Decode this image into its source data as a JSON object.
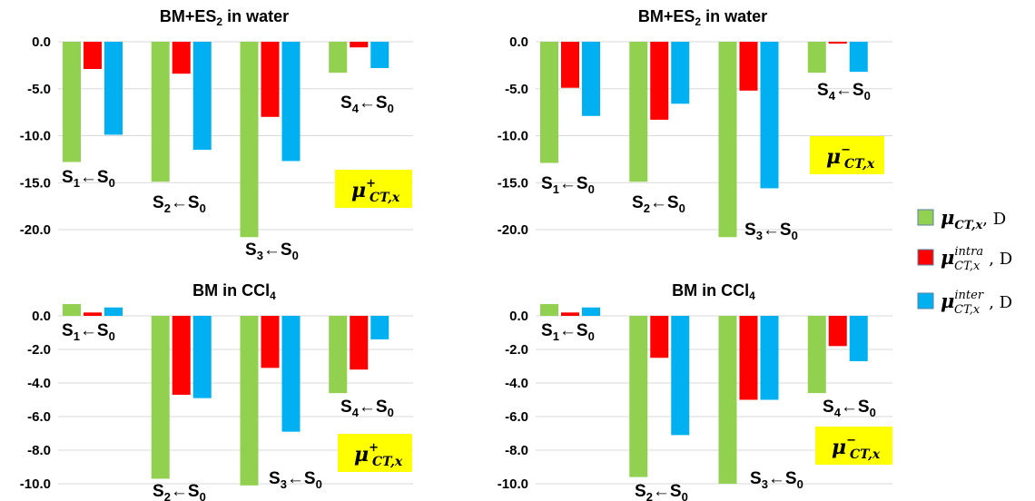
{
  "colors": {
    "mu": "#92d050",
    "intra": "#ff0000",
    "inter": "#00b0f0",
    "highlight": "#ffff00",
    "grid": "#d9d9d9"
  },
  "legend": [
    {
      "sym": "μ",
      "sub": "CT,x",
      "sup": "",
      "unit": ", D",
      "color_key": "mu"
    },
    {
      "sym": "μ",
      "sub": "CT,x",
      "sup": "intra",
      "unit": ", D",
      "color_key": "intra"
    },
    {
      "sym": "μ",
      "sub": "CT,x",
      "sup": "inter",
      "unit": ", D",
      "color_key": "inter"
    }
  ],
  "chart_data": [
    {
      "type": "bar",
      "title": {
        "base": "BM+ES",
        "sub": "2",
        "rest": " in water"
      },
      "ylim": [
        -20,
        0
      ],
      "yticks": [
        "0.0",
        "-5.0",
        "-10.0",
        "-15.0",
        "-20.0"
      ],
      "grid": true,
      "label": {
        "sym": "μ",
        "sup": "+",
        "sub": "CT,x"
      },
      "series": [
        {
          "color_key": "mu",
          "values": [
            -12.8,
            -14.9,
            -20.8,
            -3.3
          ]
        },
        {
          "color_key": "intra",
          "values": [
            -2.9,
            -3.4,
            -8.0,
            -0.6
          ]
        },
        {
          "color_key": "inter",
          "values": [
            -9.9,
            -11.5,
            -12.7,
            -2.8
          ]
        }
      ],
      "transitions": [
        {
          "a": "S",
          "an": "1",
          "arrow": "←",
          "b": "S",
          "bn": "0"
        },
        {
          "a": "S",
          "an": "2",
          "arrow": "←",
          "b": "S",
          "bn": "0"
        },
        {
          "a": "S",
          "an": "3",
          "arrow": "←",
          "b": "S",
          "bn": "0"
        },
        {
          "a": "S",
          "an": "4",
          "arrow": "←",
          "b": "S",
          "bn": "0"
        }
      ]
    },
    {
      "type": "bar",
      "title": {
        "base": "BM+ES",
        "sub": "2",
        "rest": " in water"
      },
      "ylim": [
        -20,
        0
      ],
      "yticks": [
        "0.0",
        "-5.0",
        "-10.0",
        "-15.0",
        "-20.0"
      ],
      "grid": true,
      "label": {
        "sym": "μ",
        "sup": "−",
        "sub": "CT,x"
      },
      "series": [
        {
          "color_key": "mu",
          "values": [
            -12.9,
            -14.9,
            -20.8,
            -3.3
          ]
        },
        {
          "color_key": "intra",
          "values": [
            -4.9,
            -8.3,
            -5.2,
            -0.2
          ]
        },
        {
          "color_key": "inter",
          "values": [
            -7.9,
            -6.6,
            -15.6,
            -3.2
          ]
        }
      ],
      "transitions": [
        {
          "a": "S",
          "an": "1",
          "arrow": "←",
          "b": "S",
          "bn": "0"
        },
        {
          "a": "S",
          "an": "2",
          "arrow": "←",
          "b": "S",
          "bn": "0"
        },
        {
          "a": "S",
          "an": "3",
          "arrow": "←",
          "b": "S",
          "bn": "0"
        },
        {
          "a": "S",
          "an": "4",
          "arrow": "←",
          "b": "S",
          "bn": "0"
        }
      ]
    },
    {
      "type": "bar",
      "title": {
        "base": "BM in CCl",
        "sub": "4",
        "rest": ""
      },
      "ylim": [
        -10,
        0
      ],
      "yticks": [
        "0.0",
        "-2.0",
        "-4.0",
        "-6.0",
        "-8.0",
        "-10.0"
      ],
      "grid": true,
      "label": {
        "sym": "μ",
        "sup": "+",
        "sub": "CT,x"
      },
      "series": [
        {
          "color_key": "mu",
          "values": [
            0.7,
            -9.7,
            -10.1,
            -4.6
          ]
        },
        {
          "color_key": "intra",
          "values": [
            0.2,
            -4.7,
            -3.1,
            -3.2
          ]
        },
        {
          "color_key": "inter",
          "values": [
            0.5,
            -4.9,
            -6.9,
            -1.4
          ]
        }
      ],
      "transitions": [
        {
          "a": "S",
          "an": "1",
          "arrow": "←",
          "b": "S",
          "bn": "0"
        },
        {
          "a": "S",
          "an": "2",
          "arrow": "←",
          "b": "S",
          "bn": "0"
        },
        {
          "a": "S",
          "an": "3",
          "arrow": "←",
          "b": "S",
          "bn": "0"
        },
        {
          "a": "S",
          "an": "4",
          "arrow": "←",
          "b": "S",
          "bn": "0"
        }
      ]
    },
    {
      "type": "bar",
      "title": {
        "base": "BM in CCl",
        "sub": "4",
        "rest": ""
      },
      "ylim": [
        -10,
        0
      ],
      "yticks": [
        "0.0",
        "-2.0",
        "-4.0",
        "-6.0",
        "-8.0",
        "-10.0"
      ],
      "grid": true,
      "label": {
        "sym": "μ",
        "sup": "−",
        "sub": "CT,x"
      },
      "series": [
        {
          "color_key": "mu",
          "values": [
            0.7,
            -9.6,
            -10.0,
            -4.6
          ]
        },
        {
          "color_key": "intra",
          "values": [
            0.2,
            -2.5,
            -5.0,
            -1.8
          ]
        },
        {
          "color_key": "inter",
          "values": [
            0.5,
            -7.1,
            -5.0,
            -2.7
          ]
        }
      ],
      "transitions": [
        {
          "a": "S",
          "an": "1",
          "arrow": "←",
          "b": "S",
          "bn": "0"
        },
        {
          "a": "S",
          "an": "2",
          "arrow": "←",
          "b": "S",
          "bn": "0"
        },
        {
          "a": "S",
          "an": "3",
          "arrow": "←",
          "b": "S",
          "bn": "0"
        },
        {
          "a": "S",
          "an": "4",
          "arrow": "←",
          "b": "S",
          "bn": "0"
        }
      ]
    }
  ]
}
